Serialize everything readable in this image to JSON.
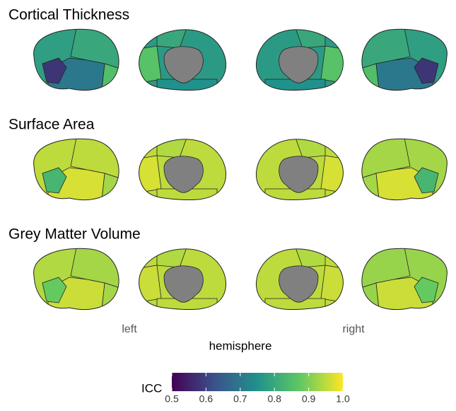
{
  "chart_data": {
    "type": "brain",
    "panels": [
      {
        "title": "Cortical Thickness",
        "views": [
          {
            "values": [
              0.78,
              0.8,
              0.85,
              0.7,
              0.58
            ]
          },
          {
            "values": [
              0.77,
              0.8,
              0.86,
              0.75
            ]
          },
          {
            "values": [
              0.77,
              0.8,
              0.86,
              0.75
            ]
          },
          {
            "values": [
              0.78,
              0.8,
              0.85,
              0.7,
              0.58
            ]
          }
        ]
      },
      {
        "title": "Surface Area",
        "views": [
          {
            "values": [
              0.95,
              0.95,
              0.93,
              0.97,
              0.83
            ]
          },
          {
            "values": [
              0.95,
              0.94,
              0.97,
              0.95
            ]
          },
          {
            "values": [
              0.95,
              0.94,
              0.97,
              0.95
            ]
          },
          {
            "values": [
              0.93,
              0.93,
              0.93,
              0.97,
              0.83
            ]
          }
        ]
      },
      {
        "title": "Grey Matter Volume",
        "views": [
          {
            "values": [
              0.94,
              0.93,
              0.93,
              0.96,
              0.88
            ]
          },
          {
            "values": [
              0.95,
              0.94,
              0.96,
              0.95
            ]
          },
          {
            "values": [
              0.95,
              0.94,
              0.96,
              0.95
            ]
          },
          {
            "values": [
              0.92,
              0.92,
              0.92,
              0.96,
              0.88
            ]
          }
        ]
      }
    ],
    "x_labels": [
      "left",
      "right"
    ],
    "xlabel": "hemisphere",
    "colorbar": {
      "title": "ICC",
      "lim": [
        0.5,
        1.0
      ],
      "ticks": [
        0.5,
        0.6,
        0.7,
        0.8,
        0.9,
        {
          "value": 1,
          "label": "1.0"
        }
      ]
    }
  }
}
